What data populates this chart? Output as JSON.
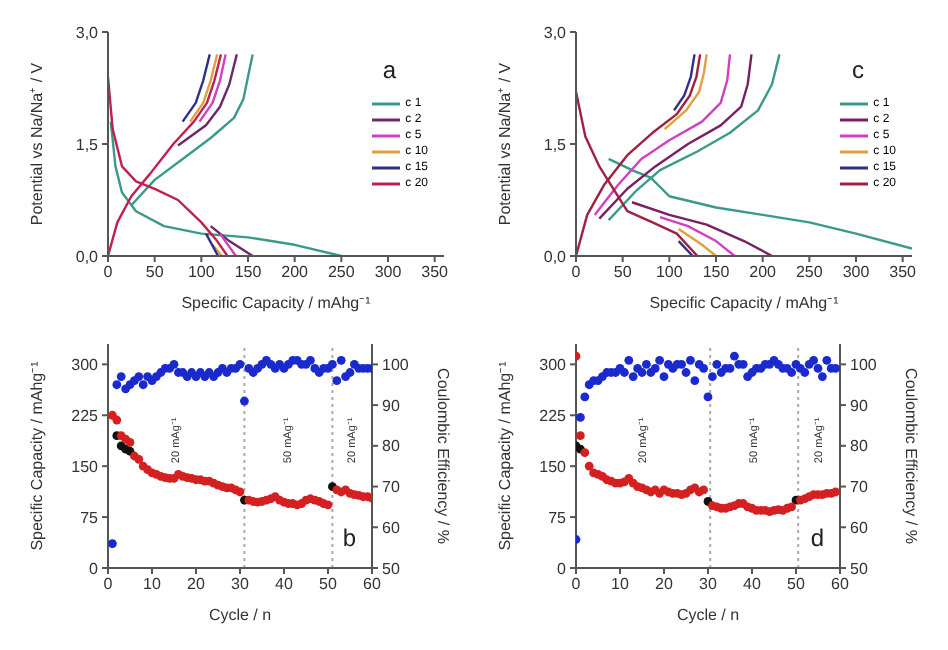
{
  "chart_data": [
    {
      "type": "line",
      "xlabel": "Specific Capacity / mAhg⁻¹",
      "ylabel": "Potential vs Na/Na⁺ / V",
      "annotations": [
        "a"
      ],
      "xlim": [
        0,
        360
      ],
      "xticks": [
        0,
        50,
        100,
        150,
        200,
        250,
        300,
        350
      ],
      "ylim": [
        0,
        3
      ],
      "yticks": [
        {
          "value": 0,
          "label": "0,0"
        },
        {
          "value": 1.5,
          "label": "1,5"
        },
        {
          "value": 3,
          "label": "3,0"
        }
      ],
      "legend": "right",
      "marker": "none",
      "series": [
        {
          "name": "c 1",
          "color": "#3a9a8a",
          "x": [
            25,
            50,
            80,
            110,
            135,
            145,
            150,
            155
          ],
          "values": [
            0.68,
            1.02,
            1.3,
            1.58,
            1.85,
            2.1,
            2.4,
            2.7
          ]
        },
        {
          "color": "#3a9a8a",
          "x": [
            3,
            8,
            15,
            30,
            60,
            100,
            150,
            200,
            250
          ],
          "values": [
            1.8,
            1.2,
            0.85,
            0.6,
            0.4,
            0.3,
            0.25,
            0.15,
            0
          ]
        },
        {
          "name": "c 2",
          "color": "#6a2a6a",
          "x": [
            75,
            105,
            120,
            130,
            138
          ],
          "values": [
            1.48,
            1.75,
            2,
            2.3,
            2.7
          ]
        },
        {
          "color": "#6a2a6a",
          "x": [
            110,
            130,
            155
          ],
          "values": [
            0.4,
            0.2,
            0
          ]
        },
        {
          "name": "c 5",
          "color": "#d040c0",
          "x": [
            98,
            112,
            120,
            126
          ],
          "values": [
            1.8,
            2.05,
            2.35,
            2.7
          ]
        },
        {
          "color": "#d040c0",
          "x": [
            120,
            137
          ],
          "values": [
            0.3,
            0
          ]
        },
        {
          "name": "c 10",
          "color": "#e0a040",
          "x": [
            88,
            102,
            110,
            117
          ],
          "values": [
            1.8,
            2.05,
            2.35,
            2.7
          ]
        },
        {
          "color": "#e0a040",
          "x": [
            112,
            122
          ],
          "values": [
            0.15,
            0
          ]
        },
        {
          "name": "c 15",
          "color": "#30308a",
          "x": [
            80,
            94,
            102,
            109
          ],
          "values": [
            1.8,
            2.05,
            2.35,
            2.7
          ]
        },
        {
          "color": "#30308a",
          "x": [
            105,
            118
          ],
          "values": [
            0.3,
            0
          ]
        },
        {
          "name": "c 20",
          "color": "#c02050",
          "x": [
            0,
            10,
            25,
            45,
            70,
            92,
            106,
            114,
            121
          ],
          "values": [
            0,
            0.45,
            0.8,
            1.1,
            1.5,
            1.8,
            2.05,
            2.35,
            2.7
          ]
        },
        {
          "color": "#c02050",
          "x": [
            0,
            5,
            15,
            30,
            50,
            75,
            100,
            117,
            128
          ],
          "values": [
            2.4,
            1.7,
            1.2,
            1,
            0.9,
            0.75,
            0.45,
            0.2,
            0
          ]
        }
      ]
    },
    {
      "type": "line",
      "xlabel": "Specific Capacity / mAhg⁻¹",
      "ylabel": "Potential vs Na/Na⁺ / V",
      "annotations": [
        "c"
      ],
      "xlim": [
        0,
        360
      ],
      "xticks": [
        0,
        50,
        100,
        150,
        200,
        250,
        300,
        350
      ],
      "ylim": [
        0,
        3
      ],
      "yticks": [
        {
          "value": 0,
          "label": "0,0"
        },
        {
          "value": 1.5,
          "label": "1,5"
        },
        {
          "value": 3,
          "label": "3,0"
        }
      ],
      "legend": "right",
      "marker": "none",
      "series": [
        {
          "name": "c 1",
          "color": "#3a9a8a",
          "x": [
            35,
            65,
            90,
            130,
            165,
            195,
            210,
            218
          ],
          "values": [
            0.48,
            0.88,
            1.15,
            1.4,
            1.65,
            1.95,
            2.3,
            2.7
          ]
        },
        {
          "color": "#3a9a8a",
          "x": [
            35,
            60,
            80,
            100,
            150,
            200,
            250,
            300,
            360
          ],
          "values": [
            1.3,
            1.15,
            1.05,
            0.8,
            0.65,
            0.55,
            0.45,
            0.3,
            0.1
          ]
        },
        {
          "name": "c 2",
          "color": "#7a2060",
          "x": [
            25,
            55,
            85,
            120,
            155,
            177,
            184,
            188
          ],
          "values": [
            0.5,
            0.9,
            1.2,
            1.5,
            1.75,
            2,
            2.3,
            2.7
          ]
        },
        {
          "color": "#7a2060",
          "x": [
            60,
            100,
            140,
            180,
            210
          ],
          "values": [
            0.72,
            0.55,
            0.42,
            0.2,
            0
          ]
        },
        {
          "name": "c 5",
          "color": "#d040c0",
          "x": [
            20,
            45,
            70,
            100,
            135,
            155,
            162,
            165
          ],
          "values": [
            0.55,
            0.95,
            1.3,
            1.55,
            1.8,
            2.05,
            2.35,
            2.7
          ]
        },
        {
          "color": "#d040c0",
          "x": [
            90,
            120,
            150,
            170
          ],
          "values": [
            0.52,
            0.4,
            0.2,
            0
          ]
        },
        {
          "name": "c 10",
          "color": "#e0a040",
          "x": [
            95,
            118,
            132,
            137,
            140
          ],
          "values": [
            1.7,
            1.95,
            2.2,
            2.45,
            2.7
          ]
        },
        {
          "color": "#e0a040",
          "x": [
            110,
            135,
            150
          ],
          "values": [
            0.36,
            0.15,
            0
          ]
        },
        {
          "name": "c 15",
          "color": "#30308a",
          "x": [
            105,
            116,
            123,
            127
          ],
          "values": [
            1.95,
            2.15,
            2.4,
            2.7
          ]
        },
        {
          "color": "#30308a",
          "x": [
            110,
            125
          ],
          "values": [
            0.2,
            0
          ]
        },
        {
          "name": "c 20",
          "color": "#a02040",
          "x": [
            0,
            12,
            30,
            55,
            82,
            108,
            122,
            129,
            133
          ],
          "values": [
            0,
            0.55,
            0.95,
            1.35,
            1.65,
            1.9,
            2.15,
            2.4,
            2.7
          ]
        },
        {
          "color": "#a02040",
          "x": [
            0,
            10,
            25,
            40,
            55,
            82,
            108,
            130
          ],
          "values": [
            2.2,
            1.6,
            1.2,
            0.9,
            0.6,
            0.45,
            0.3,
            0
          ]
        }
      ]
    },
    {
      "type": "scatter",
      "xlabel": "Cycle / n",
      "ylabel": "Specific Capacity / mAhg⁻¹",
      "y2label": "Coulombic Efficiency / %",
      "xlim": [
        0,
        60
      ],
      "xticks": [
        0,
        10,
        20,
        30,
        40,
        50,
        60
      ],
      "ylim": [
        0,
        330
      ],
      "yticks": [
        0,
        75,
        150,
        225,
        300
      ],
      "y2lim": [
        50,
        105
      ],
      "y2ticks": [
        50,
        60,
        70,
        80,
        90,
        100
      ],
      "marker": "circle",
      "annotations": [
        "b",
        "20 mAg⁻¹",
        "50 mAg⁻¹",
        "20 mAg⁻¹"
      ],
      "ref_lines": [
        {
          "axis": "x",
          "value": 31,
          "color": "#aaaaaa",
          "line_style": "dotted"
        },
        {
          "axis": "x",
          "value": 51,
          "color": "#aaaaaa",
          "line_style": "dotted"
        }
      ],
      "x": [
        1,
        2,
        3,
        4,
        5,
        6,
        7,
        8,
        9,
        10,
        11,
        12,
        13,
        14,
        15,
        16,
        17,
        18,
        19,
        20,
        21,
        22,
        23,
        24,
        25,
        26,
        27,
        28,
        29,
        30,
        31,
        32,
        33,
        34,
        35,
        36,
        37,
        38,
        39,
        40,
        41,
        42,
        43,
        44,
        45,
        46,
        47,
        48,
        49,
        50,
        51,
        52,
        53,
        54,
        55,
        56,
        57,
        58,
        59,
        60
      ],
      "series": [
        {
          "color": "#111111",
          "values": [
            null,
            195,
            180,
            175,
            172,
            null,
            null,
            null,
            null,
            null,
            null,
            null,
            null,
            null,
            null,
            null,
            null,
            null,
            null,
            null,
            null,
            null,
            null,
            null,
            null,
            null,
            null,
            null,
            null,
            null,
            100,
            null,
            null,
            null,
            null,
            null,
            null,
            null,
            null,
            null,
            null,
            null,
            null,
            null,
            null,
            null,
            null,
            null,
            null,
            null,
            120,
            null,
            null,
            null,
            null,
            null,
            null,
            null,
            null,
            null
          ]
        },
        {
          "color": "#d42020",
          "values": [
            225,
            218,
            195,
            190,
            185,
            165,
            160,
            150,
            145,
            140,
            138,
            135,
            133,
            132,
            132,
            138,
            135,
            133,
            132,
            130,
            130,
            128,
            128,
            125,
            122,
            120,
            118,
            118,
            115,
            112,
            null,
            100,
            98,
            97,
            98,
            100,
            102,
            105,
            100,
            97,
            95,
            95,
            93,
            95,
            100,
            102,
            100,
            98,
            95,
            93,
            null,
            115,
            112,
            115,
            110,
            108,
            107,
            105,
            105,
            103
          ]
        },
        {
          "color": "#1a2acc",
          "axis": "y2",
          "values": [
            56,
            95,
            97,
            94,
            95,
            96,
            97,
            95,
            97,
            96,
            97,
            98,
            99,
            99,
            100,
            98,
            98,
            97,
            98,
            97,
            98,
            97,
            98,
            97,
            98,
            99,
            98,
            99,
            99,
            100,
            91,
            99,
            98,
            99,
            100,
            101,
            100,
            99,
            100,
            99,
            100,
            101,
            101,
            100,
            100,
            101,
            99,
            98,
            99,
            99,
            100,
            96,
            101,
            97,
            98,
            100,
            99,
            99,
            99,
            99
          ]
        }
      ]
    },
    {
      "type": "scatter",
      "xlabel": "Cycle / n",
      "ylabel": "Specific Capacity / mAhg⁻¹",
      "y2label": "Coulombic Efficiency / %",
      "xlim": [
        0,
        60
      ],
      "xticks": [
        0,
        10,
        20,
        30,
        40,
        50,
        60
      ],
      "ylim": [
        0,
        330
      ],
      "yticks": [
        0,
        75,
        150,
        225,
        300
      ],
      "y2lim": [
        50,
        105
      ],
      "y2ticks": [
        50,
        60,
        70,
        80,
        90,
        100
      ],
      "marker": "circle",
      "annotations": [
        "d",
        "20 mAg⁻¹",
        "50 mAg⁻¹",
        "20 mAg⁻¹"
      ],
      "ref_lines": [
        {
          "axis": "x",
          "value": 30.5,
          "color": "#aaaaaa",
          "line_style": "dotted"
        },
        {
          "axis": "x",
          "value": 50.5,
          "color": "#aaaaaa",
          "line_style": "dotted"
        }
      ],
      "x": [
        0,
        1,
        2,
        3,
        4,
        5,
        6,
        7,
        8,
        9,
        10,
        11,
        12,
        13,
        14,
        15,
        16,
        17,
        18,
        19,
        20,
        21,
        22,
        23,
        24,
        25,
        26,
        27,
        28,
        29,
        30,
        31,
        32,
        33,
        34,
        35,
        36,
        37,
        38,
        39,
        40,
        41,
        42,
        43,
        44,
        45,
        46,
        47,
        48,
        49,
        50,
        51,
        52,
        53,
        54,
        55,
        56,
        57,
        58,
        59
      ],
      "series": [
        {
          "color": "#111111",
          "values": [
            180,
            175,
            null,
            null,
            null,
            null,
            null,
            null,
            null,
            null,
            null,
            null,
            null,
            null,
            null,
            null,
            null,
            null,
            null,
            null,
            null,
            null,
            null,
            null,
            null,
            null,
            null,
            null,
            null,
            null,
            98,
            null,
            null,
            null,
            null,
            null,
            null,
            null,
            null,
            null,
            null,
            null,
            null,
            null,
            null,
            null,
            null,
            null,
            null,
            null,
            100,
            null,
            null,
            null,
            null,
            null,
            null,
            null,
            null,
            null
          ]
        },
        {
          "color": "#d42020",
          "values": [
            312,
            195,
            170,
            150,
            140,
            138,
            135,
            130,
            128,
            125,
            125,
            127,
            132,
            125,
            120,
            118,
            115,
            112,
            115,
            110,
            115,
            112,
            110,
            110,
            108,
            110,
            115,
            118,
            112,
            115,
            null,
            92,
            90,
            88,
            88,
            90,
            92,
            95,
            95,
            90,
            88,
            85,
            85,
            85,
            83,
            85,
            86,
            85,
            88,
            90,
            null,
            100,
            102,
            105,
            108,
            108,
            108,
            110,
            110,
            112
          ]
        },
        {
          "color": "#1a2acc",
          "axis": "y2",
          "values": [
            57,
            87,
            92,
            95,
            96,
            96,
            97,
            98,
            98,
            98,
            99,
            98,
            101,
            97,
            99,
            98,
            100,
            98,
            99,
            101,
            97,
            100,
            99,
            100,
            100,
            98,
            101,
            96,
            100,
            99,
            92,
            97,
            100,
            98,
            99,
            99,
            102,
            100,
            100,
            97,
            98,
            99,
            99,
            100,
            100,
            101,
            100,
            99,
            99,
            98,
            100,
            99,
            98,
            100,
            101,
            99,
            97,
            101,
            99,
            99
          ]
        }
      ]
    }
  ]
}
